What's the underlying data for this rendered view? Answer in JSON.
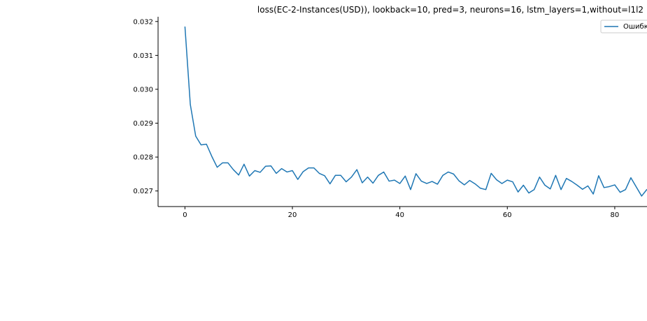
{
  "chart_data": {
    "type": "line",
    "title": "loss(EC-2-Instances(USD)), lookback=10, pred=3, neurons=16, lstm_layers=1,without=l1l2",
    "xlabel": "",
    "ylabel": "",
    "xlim": [
      -5,
      86
    ],
    "ylim": [
      0.02654,
      0.03214
    ],
    "x_ticks": [
      0,
      20,
      40,
      60,
      80
    ],
    "y_ticks": [
      0.027,
      0.028,
      0.029,
      0.03,
      0.031,
      0.032
    ],
    "x_tick_labels": [
      "0",
      "20",
      "40",
      "60",
      "80"
    ],
    "y_tick_labels": [
      "0.027",
      "0.028",
      "0.029",
      "0.030",
      "0.031",
      "0.032"
    ],
    "legend": {
      "position": "top-right",
      "entries": [
        "Ошибка"
      ]
    },
    "colors": {
      "series": "#1f77b4"
    },
    "grid": false,
    "series": [
      {
        "name": "Ошибка",
        "x": [
          0,
          1,
          2,
          3,
          4,
          5,
          6,
          7,
          8,
          9,
          10,
          11,
          12,
          13,
          14,
          15,
          16,
          17,
          18,
          19,
          20,
          21,
          22,
          23,
          24,
          25,
          26,
          27,
          28,
          29,
          30,
          31,
          32,
          33,
          34,
          35,
          36,
          37,
          38,
          39,
          40,
          41,
          42,
          43,
          44,
          45,
          46,
          47,
          48,
          49,
          50,
          51,
          52,
          53,
          54,
          55,
          56,
          57,
          58,
          59,
          60,
          61,
          62,
          63,
          64,
          65,
          66,
          67,
          68,
          69,
          70,
          71,
          72,
          73,
          74,
          75,
          76,
          77,
          78,
          79,
          80,
          81,
          82,
          83,
          84,
          85,
          86
        ],
        "values": [
          0.03185,
          0.02955,
          0.02862,
          0.02836,
          0.02838,
          0.02802,
          0.0277,
          0.02783,
          0.02783,
          0.02763,
          0.02747,
          0.02779,
          0.02744,
          0.0276,
          0.02755,
          0.02773,
          0.02774,
          0.02752,
          0.02766,
          0.02756,
          0.0276,
          0.02734,
          0.02757,
          0.02768,
          0.02768,
          0.02752,
          0.02745,
          0.02721,
          0.02746,
          0.02746,
          0.02727,
          0.02741,
          0.02763,
          0.02724,
          0.02741,
          0.02723,
          0.02746,
          0.02756,
          0.02729,
          0.02732,
          0.02722,
          0.02744,
          0.02704,
          0.02751,
          0.02729,
          0.02722,
          0.02728,
          0.0272,
          0.02746,
          0.02756,
          0.0275,
          0.0273,
          0.02718,
          0.02731,
          0.02721,
          0.02708,
          0.02704,
          0.02752,
          0.02733,
          0.02722,
          0.02732,
          0.02727,
          0.02697,
          0.02717,
          0.02694,
          0.02704,
          0.02741,
          0.02717,
          0.02706,
          0.02746,
          0.02704,
          0.02737,
          0.02728,
          0.02717,
          0.02705,
          0.02715,
          0.02691,
          0.02745,
          0.0271,
          0.02713,
          0.02718,
          0.02696,
          0.02704,
          0.02739,
          0.02712,
          0.02685,
          0.02705
        ]
      }
    ]
  }
}
